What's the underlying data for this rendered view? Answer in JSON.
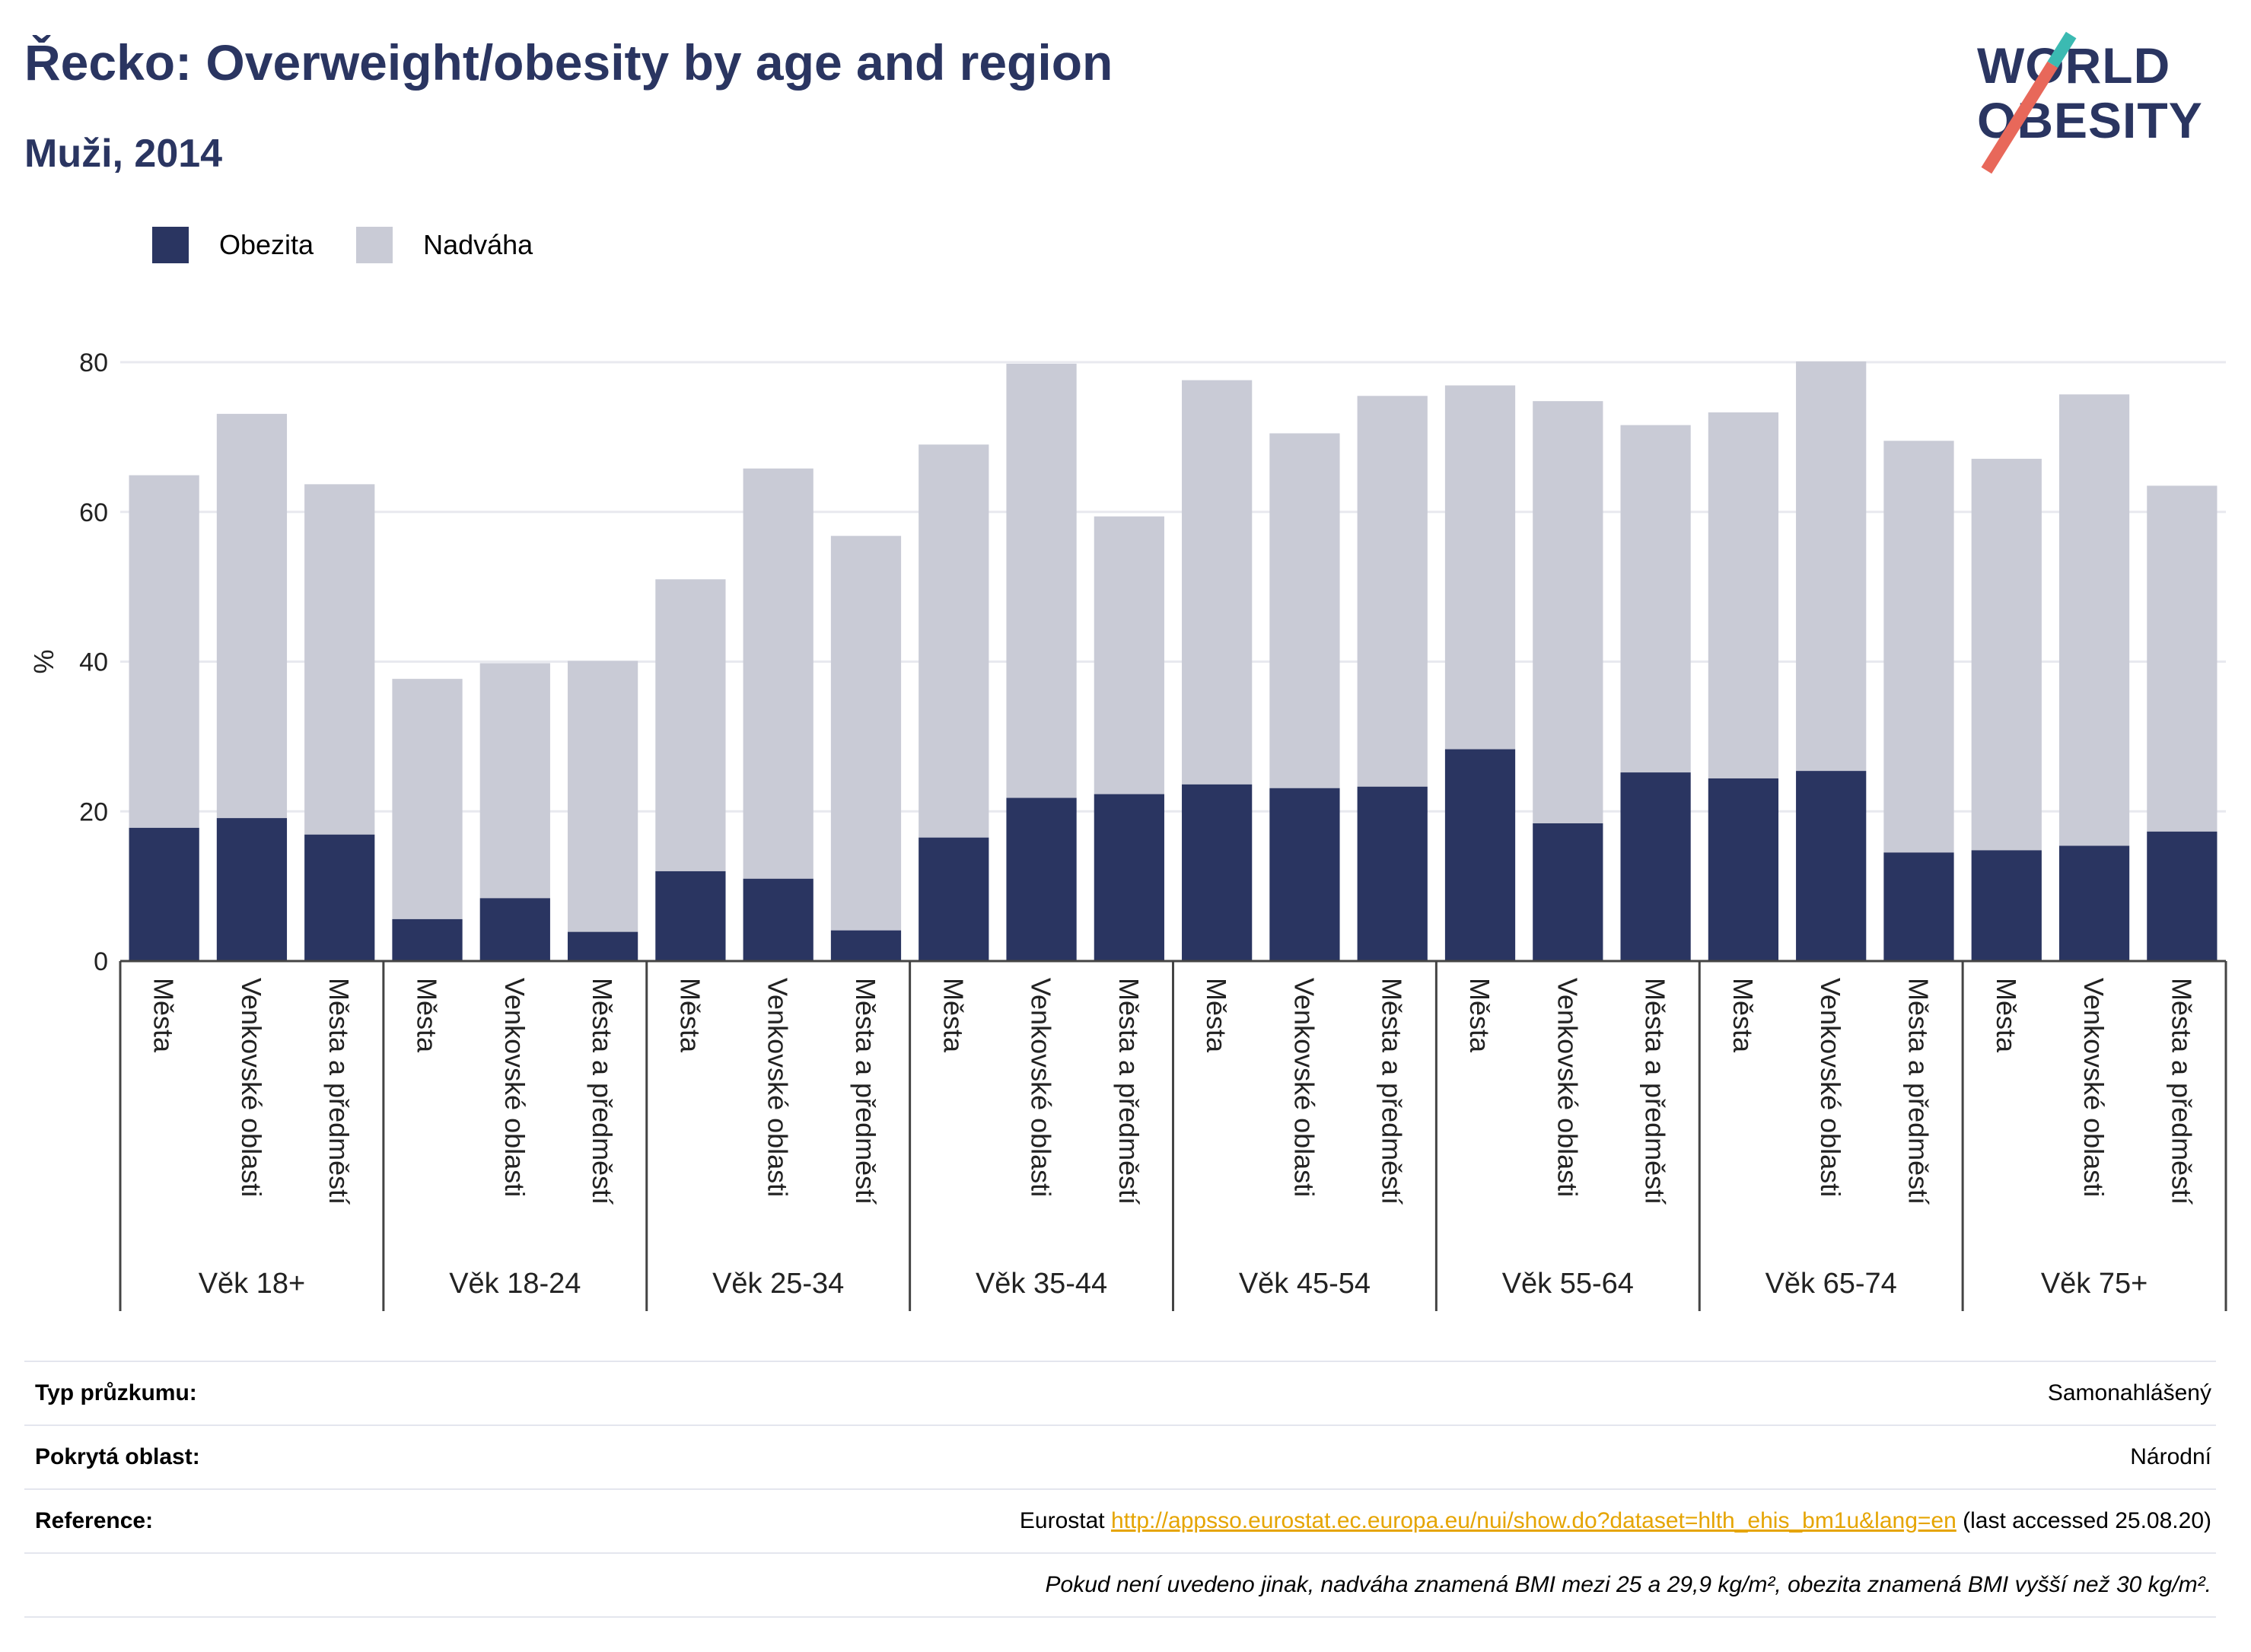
{
  "title": "Řecko: Overweight/obesity by age and region",
  "subtitle": "Muži, 2014",
  "logo": {
    "line1": "WORLD",
    "line2": "OBESITY"
  },
  "colors": {
    "obesity": "#2a3561",
    "overweight": "#c9cbd6",
    "title": "#2a3561",
    "grid": "#e8e9ef",
    "axis": "#444444"
  },
  "legend": [
    {
      "label": "Obezita",
      "color": "#2a3561"
    },
    {
      "label": "Nadváha",
      "color": "#c9cbd6"
    }
  ],
  "chart_data": {
    "type": "bar",
    "stacked": true,
    "ylabel": "%",
    "ylim": [
      0,
      80
    ],
    "yticks": [
      0,
      20,
      40,
      60,
      80
    ],
    "grid": true,
    "legend_position": "top-left",
    "groups": [
      "Věk 18+",
      "Věk 18-24",
      "Věk 25-34",
      "Věk 35-44",
      "Věk 45-54",
      "Věk 55-64",
      "Věk 65-74",
      "Věk 75+"
    ],
    "subcategories": [
      "Města",
      "Venkovské oblasti",
      "Města a předměstí"
    ],
    "series": [
      {
        "name": "Obezita",
        "values": [
          17.8,
          19.1,
          16.9,
          5.6,
          8.4,
          3.9,
          12.0,
          11.0,
          4.1,
          16.5,
          21.8,
          22.3,
          23.6,
          23.1,
          23.3,
          28.3,
          18.4,
          25.2,
          24.4,
          25.4,
          14.5,
          14.8,
          15.4,
          17.3
        ]
      },
      {
        "name": "Nadváha",
        "values": [
          47.1,
          54.0,
          46.8,
          32.1,
          31.4,
          36.2,
          39.0,
          54.8,
          52.7,
          52.5,
          58.0,
          37.1,
          54.0,
          47.4,
          52.2,
          48.6,
          56.4,
          46.4,
          48.9,
          54.7,
          55.0,
          52.3,
          60.3,
          46.2
        ]
      }
    ]
  },
  "footer": {
    "survey_type_label": "Typ průzkumu:",
    "survey_type_value": "Samonahlášený",
    "coverage_label": "Pokrytá oblast:",
    "coverage_value": "Národní",
    "reference_label": "Reference:",
    "reference_prefix": "Eurostat",
    "reference_link": "http://appsso.eurostat.ec.europa.eu/nui/show.do?dataset=hlth_ehis_bm1u&lang=en",
    "reference_suffix": "(last accessed 25.08.20)",
    "note": "Pokud není uvedeno jinak, nadváha znamená BMI mezi 25 a 29,9 kg/m², obezita znamená BMI vyšší než 30 kg/m²."
  }
}
